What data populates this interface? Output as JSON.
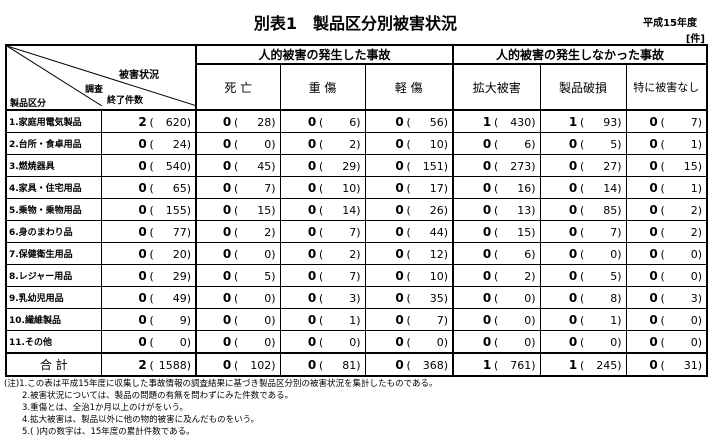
{
  "title": "別表1　製品区分別被害状況",
  "year": "平成15年度",
  "unit": "[件]",
  "header": {
    "corner": {
      "damage": "被害状況",
      "survey": "調査",
      "done": "終了件数",
      "category": "製品区分"
    },
    "group_human": "人的被害の発生した事故",
    "group_nonhuman": "人的被害の発生しなかった事故",
    "columns": [
      "死 亡",
      "重 傷",
      "軽 傷",
      "拡大被害",
      "製品破損",
      "特に被害なし"
    ]
  },
  "rows": [
    {
      "label": "1.家庭用電気製品",
      "vals": [
        [
          "2",
          "620"
        ],
        [
          "0",
          "28"
        ],
        [
          "0",
          "6"
        ],
        [
          "0",
          "56"
        ],
        [
          "1",
          "430"
        ],
        [
          "1",
          "93"
        ],
        [
          "0",
          "7"
        ]
      ]
    },
    {
      "label": "2.台所・食卓用品",
      "vals": [
        [
          "0",
          "24"
        ],
        [
          "0",
          "0"
        ],
        [
          "0",
          "2"
        ],
        [
          "0",
          "10"
        ],
        [
          "0",
          "6"
        ],
        [
          "0",
          "5"
        ],
        [
          "0",
          "1"
        ]
      ]
    },
    {
      "label": "3.燃焼器具",
      "vals": [
        [
          "0",
          "540"
        ],
        [
          "0",
          "45"
        ],
        [
          "0",
          "29"
        ],
        [
          "0",
          "151"
        ],
        [
          "0",
          "273"
        ],
        [
          "0",
          "27"
        ],
        [
          "0",
          "15"
        ]
      ]
    },
    {
      "label": "4.家具・住宅用品",
      "vals": [
        [
          "0",
          "65"
        ],
        [
          "0",
          "7"
        ],
        [
          "0",
          "10"
        ],
        [
          "0",
          "17"
        ],
        [
          "0",
          "16"
        ],
        [
          "0",
          "14"
        ],
        [
          "0",
          "1"
        ]
      ]
    },
    {
      "label": "5.乗物・乗物用品",
      "vals": [
        [
          "0",
          "155"
        ],
        [
          "0",
          "15"
        ],
        [
          "0",
          "14"
        ],
        [
          "0",
          "26"
        ],
        [
          "0",
          "13"
        ],
        [
          "0",
          "85"
        ],
        [
          "0",
          "2"
        ]
      ]
    },
    {
      "label": "6.身のまわり品",
      "vals": [
        [
          "0",
          "77"
        ],
        [
          "0",
          "2"
        ],
        [
          "0",
          "7"
        ],
        [
          "0",
          "44"
        ],
        [
          "0",
          "15"
        ],
        [
          "0",
          "7"
        ],
        [
          "0",
          "2"
        ]
      ]
    },
    {
      "label": "7.保健衛生用品",
      "vals": [
        [
          "0",
          "20"
        ],
        [
          "0",
          "0"
        ],
        [
          "0",
          "2"
        ],
        [
          "0",
          "12"
        ],
        [
          "0",
          "6"
        ],
        [
          "0",
          "0"
        ],
        [
          "0",
          "0"
        ]
      ]
    },
    {
      "label": "8.レジャー用品",
      "vals": [
        [
          "0",
          "29"
        ],
        [
          "0",
          "5"
        ],
        [
          "0",
          "7"
        ],
        [
          "0",
          "10"
        ],
        [
          "0",
          "2"
        ],
        [
          "0",
          "5"
        ],
        [
          "0",
          "0"
        ]
      ]
    },
    {
      "label": "9.乳幼児用品",
      "vals": [
        [
          "0",
          "49"
        ],
        [
          "0",
          "0"
        ],
        [
          "0",
          "3"
        ],
        [
          "0",
          "35"
        ],
        [
          "0",
          "0"
        ],
        [
          "0",
          "8"
        ],
        [
          "0",
          "3"
        ]
      ]
    },
    {
      "label": "10.繊維製品",
      "vals": [
        [
          "0",
          "9"
        ],
        [
          "0",
          "0"
        ],
        [
          "0",
          "1"
        ],
        [
          "0",
          "7"
        ],
        [
          "0",
          "0"
        ],
        [
          "0",
          "1"
        ],
        [
          "0",
          "0"
        ]
      ]
    },
    {
      "label": "11.その他",
      "vals": [
        [
          "0",
          "0"
        ],
        [
          "0",
          "0"
        ],
        [
          "0",
          "0"
        ],
        [
          "0",
          "0"
        ],
        [
          "0",
          "0"
        ],
        [
          "0",
          "0"
        ],
        [
          "0",
          "0"
        ]
      ]
    }
  ],
  "total": {
    "label": "合 計",
    "vals": [
      [
        "2",
        "1588"
      ],
      [
        "0",
        "102"
      ],
      [
        "0",
        "81"
      ],
      [
        "0",
        "368"
      ],
      [
        "1",
        "761"
      ],
      [
        "1",
        "245"
      ],
      [
        "0",
        "31"
      ]
    ]
  },
  "notes": [
    "(注)1.この表は平成15年度に収集した事故情報の調査結果に基づき製品区分別の被害状況を集計したものである。",
    "2.被害状況については、製品の問題の有無を問わずにみた件数である。",
    "3.重傷とは、全治1か月以上のけがをいう。",
    "4.拡大被害は、製品以外に他の物的被害に及んだものをいう。",
    "5.( )内の数字は、15年度の累計件数である。"
  ]
}
